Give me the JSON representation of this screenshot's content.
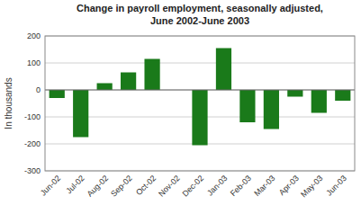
{
  "chart_data": {
    "type": "bar",
    "title": "Change in payroll employment, seasonally adjusted,",
    "subtitle": "June 2002-June 2003",
    "categories": [
      "Jun-02",
      "Jul-02",
      "Aug-02",
      "Sep-02",
      "Oct-02",
      "Nov-02",
      "Dec-02",
      "Jan-03",
      "Feb-03",
      "Mar-03",
      "Apr-03",
      "May-03",
      "Jun-03"
    ],
    "values": [
      -30,
      -175,
      25,
      65,
      115,
      0,
      -205,
      155,
      -120,
      -145,
      -25,
      -85,
      -40
    ],
    "color": "#1a7a1a",
    "y_label": "In thousands",
    "ylim": [
      -300,
      200
    ],
    "yticks": [
      -300,
      -200,
      -100,
      0,
      100,
      200
    ],
    "grid": true
  }
}
